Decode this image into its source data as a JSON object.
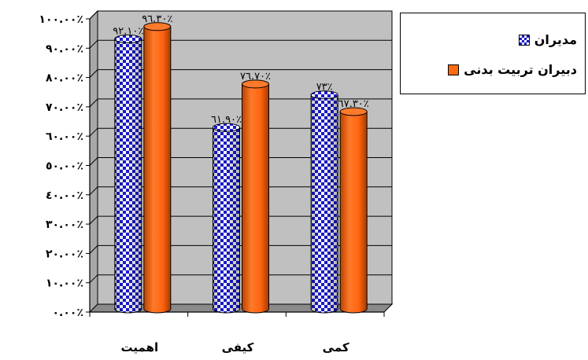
{
  "chart_data": {
    "type": "bar",
    "categories": [
      "اهمیت",
      "کیفی",
      "کمی"
    ],
    "series": [
      {
        "name": "مدیران",
        "values": [
          92.1,
          61.9,
          73
        ],
        "labels": [
          "٩٢.١٠٪",
          "٦١.٩٠٪",
          "٧٣٪"
        ],
        "color": "#1a1ad0",
        "pattern": "checker"
      },
      {
        "name": "دبیران تربیت بدنی",
        "values": [
          96.3,
          76.7,
          67.3
        ],
        "labels": [
          "٩٦.٣٠٪",
          "٧٦.٧٠٪",
          "٦٧.٣٠٪"
        ],
        "color": "#ff6a12",
        "pattern": "solid"
      }
    ],
    "ylim": [
      0,
      100
    ],
    "yticks": [
      0,
      10,
      20,
      30,
      40,
      50,
      60,
      70,
      80,
      90,
      100
    ],
    "yticklabels": [
      "٠.٠٠٪",
      "١٠.٠٠٪",
      "٢٠.٠٠٪",
      "٣٠.٠٠٪",
      "٤٠.٠٠٪",
      "٥٠.٠٠٪",
      "٦٠.٠٠٪",
      "٧٠.٠٠٪",
      "٨٠.٠٠٪",
      "٩٠.٠٠٪",
      "١٠٠.٠٠٪"
    ],
    "grid": true,
    "legend_position": "top-right",
    "wall_color": "#c0c0c0"
  }
}
